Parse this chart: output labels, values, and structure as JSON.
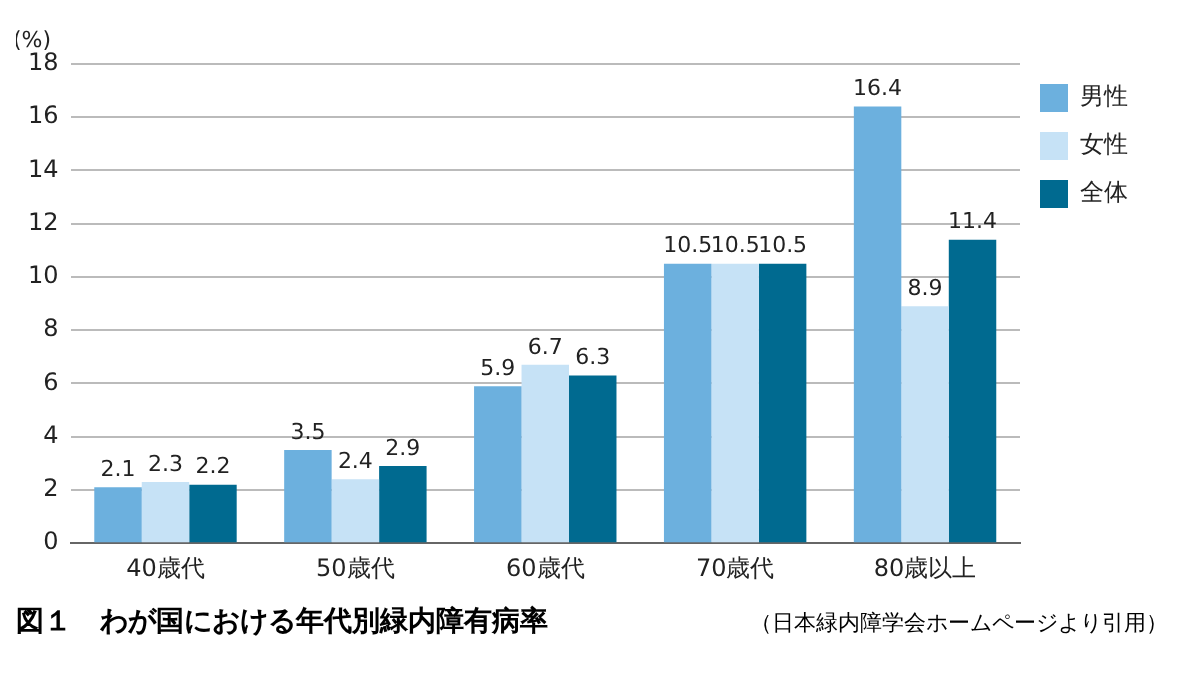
{
  "chart_data": {
    "type": "bar",
    "title": "図１　わが国における年代別緑内障有病率",
    "ylabel": "(%)",
    "annotations": [
      "（日本緑内障学会ホームページより引用）"
    ],
    "categories": [
      "40歳代",
      "50歳代",
      "60歳代",
      "70歳代",
      "80歳以上"
    ],
    "series": [
      {
        "name": "男性",
        "color": "#6cb0de",
        "values": [
          2.1,
          3.5,
          5.9,
          10.5,
          16.4
        ]
      },
      {
        "name": "女性",
        "color": "#c6e2f6",
        "values": [
          2.3,
          2.4,
          6.7,
          10.5,
          8.9
        ]
      },
      {
        "name": "全体",
        "color": "#006a90",
        "values": [
          2.2,
          2.9,
          6.3,
          10.5,
          11.4
        ]
      }
    ],
    "ylim": [
      0,
      18
    ],
    "yticks": [
      0,
      2,
      4,
      6,
      8,
      10,
      12,
      14,
      16,
      18
    ],
    "grid": "y",
    "legend": "top right",
    "data_labels": true
  }
}
